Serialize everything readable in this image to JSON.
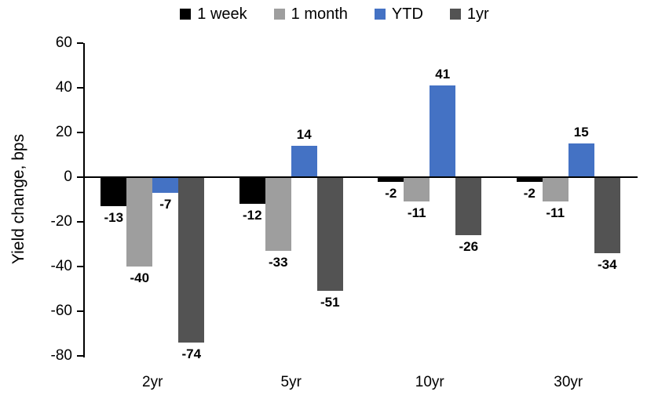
{
  "chart_data": {
    "type": "bar",
    "title": "",
    "xlabel": "",
    "ylabel": "Yield change, bps",
    "categories": [
      "2yr",
      "5yr",
      "10yr",
      "30yr"
    ],
    "series": [
      {
        "name": "1 week",
        "color": "#000000",
        "values": [
          -13,
          -12,
          -2,
          -2
        ]
      },
      {
        "name": "1 month",
        "color": "#9E9E9E",
        "values": [
          -40,
          -33,
          -11,
          -11
        ]
      },
      {
        "name": "YTD",
        "color": "#4472C4",
        "values": [
          -7,
          14,
          41,
          15
        ]
      },
      {
        "name": "1yr",
        "color": "#535353",
        "values": [
          -74,
          -51,
          -26,
          -34
        ]
      }
    ],
    "ylim": [
      -80,
      60
    ],
    "yticks": [
      60,
      40,
      20,
      0,
      -20,
      -40,
      -60,
      -80
    ],
    "grid": false,
    "legend_position": "top",
    "value_labels": "outside-end"
  }
}
